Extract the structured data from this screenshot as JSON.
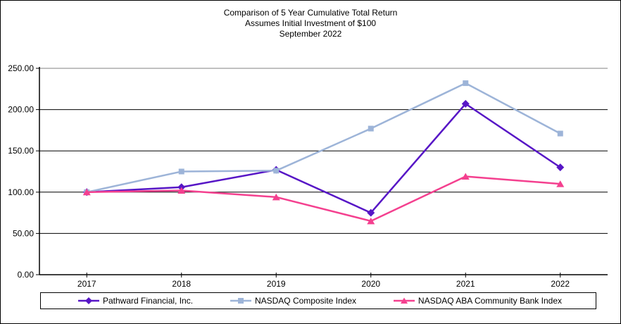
{
  "chart_data": {
    "type": "line",
    "title": "Comparison of 5 Year Cumulative Total Return",
    "subtitle": "Assumes Initial Investment of $100",
    "date_line": "September 2022",
    "categories": [
      "2017",
      "2018",
      "2019",
      "2020",
      "2021",
      "2022"
    ],
    "series": [
      {
        "name": "Pathward Financial, Inc.",
        "marker": "diamond",
        "color": "#5716C6",
        "values": [
          100.0,
          106.0,
          127.0,
          75.0,
          207.0,
          130.0
        ]
      },
      {
        "name": "NASDAQ Composite Index",
        "marker": "square",
        "color": "#9DB4D8",
        "values": [
          100.0,
          125.0,
          126.0,
          177.0,
          232.0,
          171.0
        ]
      },
      {
        "name": "NASDAQ ABA Community Bank Index",
        "marker": "triangle",
        "color": "#F4408F",
        "values": [
          100.0,
          102.0,
          94.0,
          65.0,
          119.0,
          110.0
        ]
      }
    ],
    "y_axis": {
      "min": 0,
      "max": 250,
      "step": 50,
      "tick_labels": [
        "0.00",
        "50.00",
        "100.00",
        "150.00",
        "200.00",
        "250.00"
      ]
    },
    "grid": true,
    "legend_position": "bottom",
    "colors": {
      "axis": "#000000",
      "gridline": "#000000",
      "top_border": "#808080",
      "background": "#FFFFFF"
    }
  }
}
